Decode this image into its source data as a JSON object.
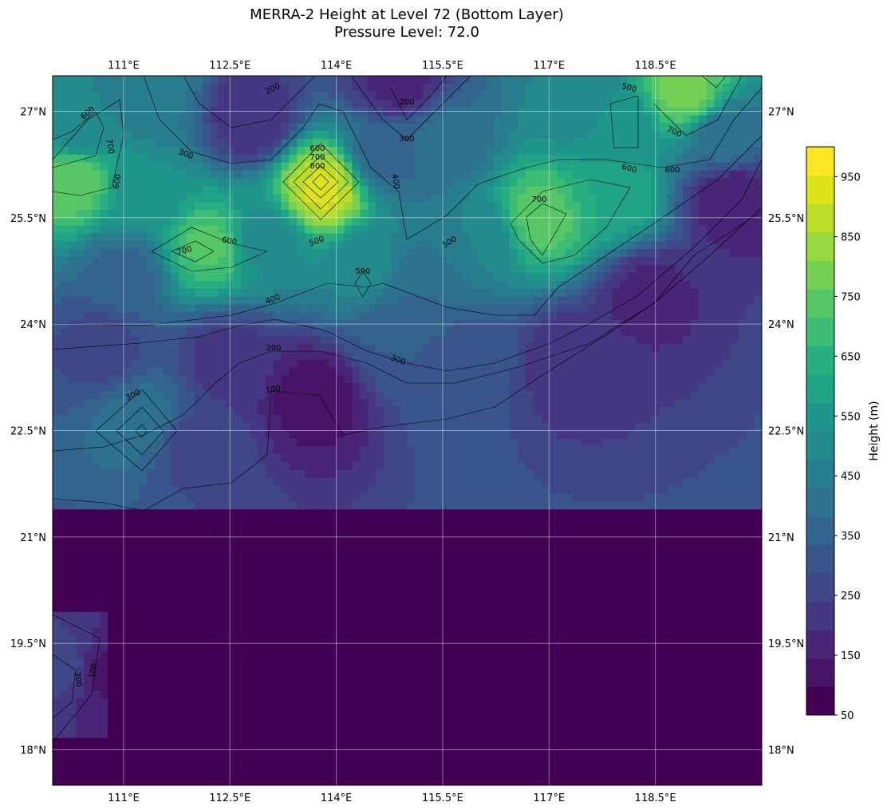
{
  "chart_data": {
    "type": "heatmap",
    "title": "MERRA-2 Height at Level 72 (Bottom Layer)",
    "subtitle": "Pressure Level: 72.0",
    "colorbar_label": "Height (m)",
    "x_ticks": [
      "111°E",
      "112.5°E",
      "114°E",
      "115.5°E",
      "117°E",
      "118.5°E"
    ],
    "y_ticks": [
      "27°N",
      "25.5°N",
      "24°N",
      "22.5°N",
      "21°N",
      "19.5°N",
      "18°N"
    ],
    "x_tick_values": [
      111,
      112.5,
      114,
      115.5,
      117,
      118.5
    ],
    "y_tick_values": [
      27,
      25.5,
      24,
      22.5,
      21,
      19.5,
      18
    ],
    "xlim": [
      110.0,
      120.0
    ],
    "ylim": [
      17.5,
      27.5
    ],
    "colorbar_ticks": [
      50,
      150,
      250,
      350,
      450,
      550,
      650,
      750,
      850,
      950
    ],
    "colorbar_range": [
      50,
      1000
    ],
    "level_step": 50,
    "grid": true,
    "colormap": [
      "#440154",
      "#481467",
      "#482576",
      "#453781",
      "#3f4788",
      "#39558c",
      "#32648e",
      "#2d718e",
      "#287d8e",
      "#238a8d",
      "#1f968b",
      "#20a386",
      "#29af7f",
      "#3dbc74",
      "#56c667",
      "#75d054",
      "#95d840",
      "#bade28",
      "#dde318",
      "#fde725"
    ],
    "field_points": [
      [
        110.3,
        26.0,
        780
      ],
      [
        111.3,
        25.8,
        560
      ],
      [
        110.4,
        26.8,
        500
      ],
      [
        111.4,
        27.2,
        460
      ],
      [
        112.8,
        26.9,
        200
      ],
      [
        114.9,
        27.4,
        180
      ],
      [
        114.7,
        26.4,
        380
      ],
      [
        115.5,
        26.6,
        420
      ],
      [
        113.8,
        25.9,
        960
      ],
      [
        112.2,
        25.1,
        760
      ],
      [
        113.0,
        25.2,
        520
      ],
      [
        111.0,
        24.7,
        380
      ],
      [
        114.4,
        24.8,
        520
      ],
      [
        115.2,
        24.5,
        400
      ],
      [
        116.9,
        25.5,
        780
      ],
      [
        117.9,
        25.8,
        650
      ],
      [
        116.0,
        25.2,
        500
      ],
      [
        117.4,
        27.2,
        500
      ],
      [
        118.9,
        27.3,
        820
      ],
      [
        118.0,
        26.8,
        560
      ],
      [
        119.5,
        26.6,
        420
      ],
      [
        119.6,
        25.8,
        150
      ],
      [
        110.7,
        23.7,
        280
      ],
      [
        112.5,
        23.5,
        220
      ],
      [
        111.3,
        22.6,
        440
      ],
      [
        111.9,
        22.3,
        280
      ],
      [
        113.7,
        23.0,
        120
      ],
      [
        114.8,
        23.8,
        350
      ],
      [
        115.9,
        23.5,
        320
      ],
      [
        117.3,
        23.5,
        210
      ],
      [
        118.4,
        24.4,
        180
      ],
      [
        110.2,
        19.2,
        270
      ],
      [
        110.7,
        19.1,
        140
      ]
    ]
  }
}
